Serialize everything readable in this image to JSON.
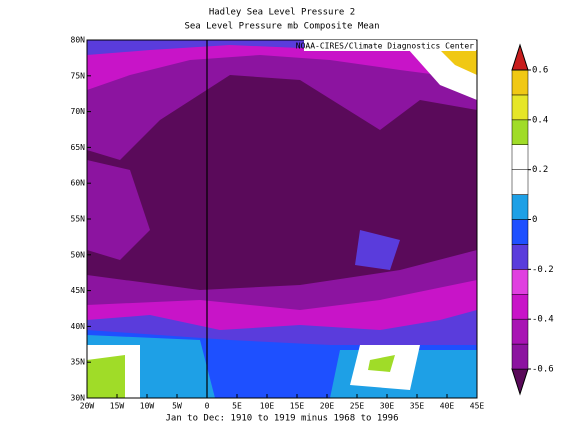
{
  "title": "Hadley Sea Level Pressure 2",
  "subtitle": "Sea Level Pressure mb Composite Mean",
  "credit": "NOAA-CIRES/Climate Diagnostics Center",
  "footer": "Jan to Dec: 1910 to 1919 minus 1968 to 1996",
  "lonlim": [
    -20,
    45
  ],
  "latlim": [
    30,
    80
  ],
  "lon_ticks": [
    {
      "value": -20,
      "label": "20W"
    },
    {
      "value": -15,
      "label": "15W"
    },
    {
      "value": -10,
      "label": "10W"
    },
    {
      "value": -5,
      "label": "5W"
    },
    0,
    {
      "value": 5,
      "label": "5E"
    },
    {
      "value": 10,
      "label": "10E"
    },
    {
      "value": 15,
      "label": "15E"
    },
    {
      "value": 20,
      "label": "20E"
    },
    {
      "value": 25,
      "label": "25E"
    },
    {
      "value": 30,
      "label": "30E"
    },
    {
      "value": 35,
      "label": "35E"
    },
    {
      "value": 40,
      "label": "40E"
    },
    {
      "value": 45,
      "label": "45E"
    }
  ],
  "lat_ticks": [
    {
      "value": 30,
      "label": "30N"
    },
    {
      "value": 35,
      "label": "35N"
    },
    {
      "value": 40,
      "label": "40N"
    },
    {
      "value": 45,
      "label": "45N"
    },
    {
      "value": 50,
      "label": "50N"
    },
    {
      "value": 55,
      "label": "55N"
    },
    {
      "value": 60,
      "label": "60N"
    },
    {
      "value": 65,
      "label": "65N"
    },
    {
      "value": 70,
      "label": "70N"
    },
    {
      "value": 75,
      "label": "75N"
    },
    {
      "value": 80,
      "label": "80N"
    }
  ],
  "colorbar": {
    "levels": [
      -0.6,
      -0.5,
      -0.4,
      -0.3,
      -0.2,
      -0.1,
      0,
      0.1,
      0.2,
      0.3,
      0.4,
      0.5,
      0.6
    ],
    "colors": [
      "#5a0a5a",
      "#8c14a0",
      "#a814b4",
      "#c814c8",
      "#e040e0",
      "#5a3cdc",
      "#1e50ff",
      "#1ea0e6",
      "#ffffff",
      "#ffffff",
      "#a0dc28",
      "#e6e628",
      "#f0c814",
      "#f08c14",
      "#c81e1e"
    ],
    "ticks": [
      -0.6,
      -0.4,
      -0.2,
      0,
      0.2,
      0.4,
      0.6
    ]
  }
}
